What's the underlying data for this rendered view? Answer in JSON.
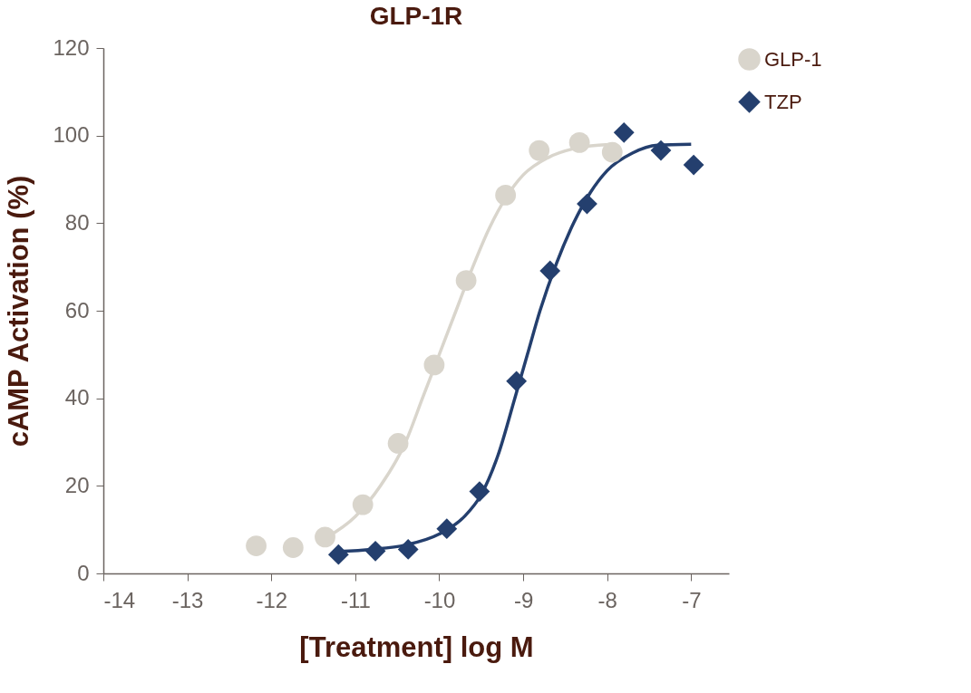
{
  "chart_data": {
    "type": "scatter",
    "title": "GLP-1R",
    "xlabel": "[Treatment] log M",
    "ylabel": "cAMP Activation (%)",
    "xlim": [
      -14,
      -6.55
    ],
    "xticks": [
      -14,
      -13,
      -12,
      -11,
      -10,
      -9,
      -8,
      -7
    ],
    "ylim": [
      0,
      120
    ],
    "yticks": [
      0,
      20,
      40,
      60,
      80,
      100,
      120
    ],
    "grid": false,
    "legend": "top right",
    "series": [
      {
        "name": "GLP-1",
        "marker": "circle",
        "color": "#d9d5cc",
        "x": [
          -12.18,
          -11.74,
          -11.36,
          -10.91,
          -10.49,
          -10.06,
          -9.68,
          -9.21,
          -8.81,
          -8.33,
          -7.94
        ],
        "values": [
          6.3,
          5.9,
          8.3,
          15.7,
          29.7,
          47.6,
          66.9,
          86.4,
          96.6,
          98.4,
          96.2
        ]
      },
      {
        "name": "TZP",
        "marker": "diamond",
        "color": "#243f6e",
        "x": [
          -11.2,
          -10.76,
          -10.37,
          -9.91,
          -9.52,
          -9.08,
          -8.68,
          -8.24,
          -7.8,
          -7.36,
          -6.97
        ],
        "values": [
          4.3,
          5.1,
          5.5,
          10.2,
          18.7,
          43.9,
          69.1,
          84.4,
          100.7,
          96.6,
          93.3
        ]
      },
      {
        "type": "line",
        "color": "#d9d5cc",
        "x": [
          -11.36,
          -11.0,
          -10.7,
          -10.4,
          -10.2,
          -10.0,
          -9.8,
          -9.6,
          -9.4,
          -9.2,
          -9.0,
          -8.7,
          -8.4,
          -8.1,
          -7.9
        ],
        "values": [
          8,
          13,
          20,
          30,
          40,
          50,
          60,
          70,
          79,
          86,
          91,
          95,
          97,
          97.8,
          98
        ]
      },
      {
        "type": "line",
        "color": "#243f6e",
        "x": [
          -11.2,
          -10.8,
          -10.4,
          -10.0,
          -9.7,
          -9.5,
          -9.3,
          -9.1,
          -8.95,
          -8.8,
          -8.6,
          -8.4,
          -8.2,
          -8.0,
          -7.7,
          -7.4,
          -7.0
        ],
        "values": [
          5,
          5.5,
          6.5,
          9,
          13,
          18,
          27,
          40,
          50,
          60,
          71,
          80,
          87,
          92,
          96,
          97.8,
          98
        ]
      }
    ]
  }
}
